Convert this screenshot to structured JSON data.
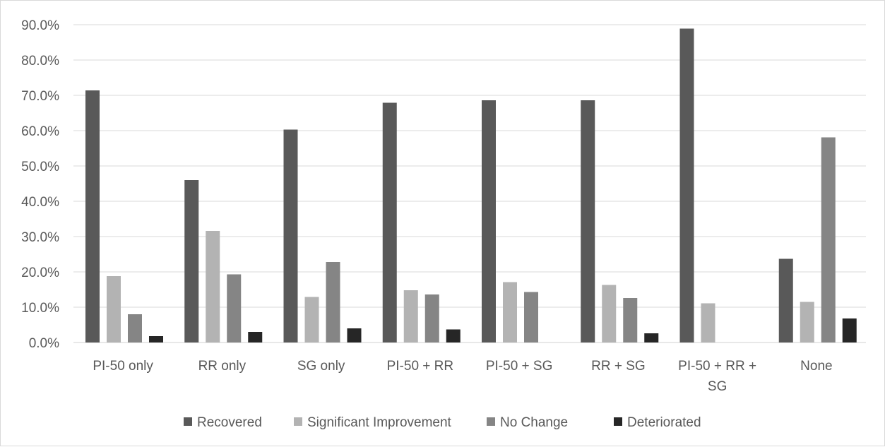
{
  "chart_data": {
    "type": "bar",
    "title": "",
    "xlabel": "",
    "ylabel": "",
    "categories": [
      [
        "PI-50 only"
      ],
      [
        "RR only"
      ],
      [
        "SG only"
      ],
      [
        "PI-50 + RR"
      ],
      [
        "PI-50 + SG"
      ],
      [
        "RR + SG"
      ],
      [
        "PI-50 + RR +",
        "SG"
      ],
      [
        "None"
      ]
    ],
    "series": [
      {
        "name": "Recovered",
        "color": "#595959",
        "values": [
          71.4,
          46.0,
          60.3,
          67.9,
          68.6,
          68.6,
          88.9,
          23.7
        ]
      },
      {
        "name": "Significant Improvement",
        "color": "#b3b3b3",
        "values": [
          18.8,
          31.6,
          12.9,
          14.8,
          17.1,
          16.3,
          11.1,
          11.5
        ]
      },
      {
        "name": "No Change",
        "color": "#858585",
        "values": [
          8.0,
          19.3,
          22.8,
          13.6,
          14.3,
          12.6,
          0.0,
          58.1
        ]
      },
      {
        "name": "Deteriorated",
        "color": "#262626",
        "values": [
          1.8,
          3.0,
          4.0,
          3.7,
          0.0,
          2.6,
          0.0,
          6.8
        ]
      }
    ],
    "ylim": [
      0,
      90
    ],
    "yticks": [
      0,
      10,
      20,
      30,
      40,
      50,
      60,
      70,
      80,
      90
    ],
    "ytick_labels": [
      "0.0%",
      "10.0%",
      "20.0%",
      "30.0%",
      "40.0%",
      "50.0%",
      "60.0%",
      "70.0%",
      "80.0%",
      "90.0%"
    ],
    "grid": true,
    "legend_position": "bottom"
  }
}
